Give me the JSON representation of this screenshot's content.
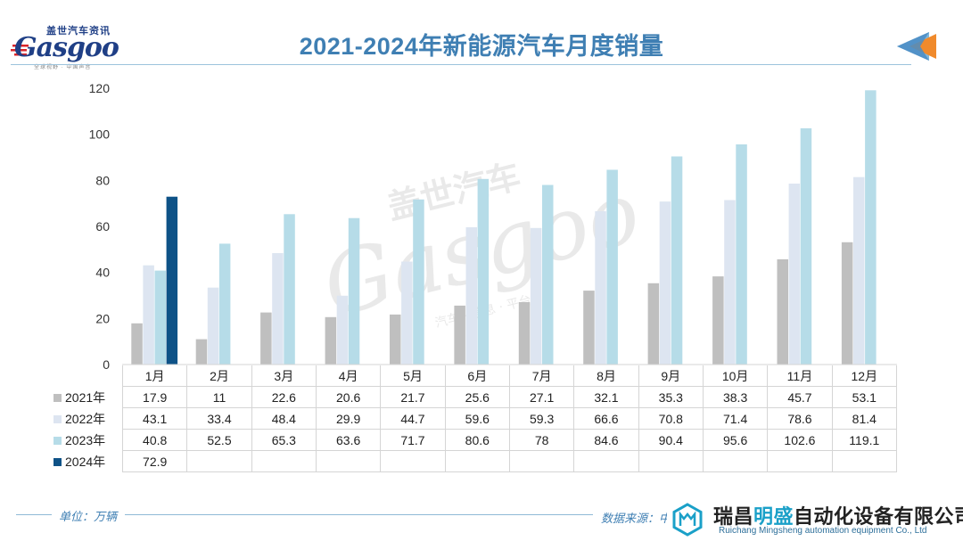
{
  "header": {
    "logo_cn": "盖世汽车资讯",
    "logo_word": "Gasgoo",
    "logo_sub": "全球视野 · 中国声音",
    "title": "2021-2024年新能源汽车月度销量"
  },
  "colors": {
    "2021": "#bfbfbf",
    "2022": "#dde5f1",
    "2023": "#b6dce8",
    "2024": "#0e5287",
    "accent": "#3f7fb3"
  },
  "chart_data": {
    "type": "bar",
    "title": "2021-2024年新能源汽车月度销量",
    "categories": [
      "1月",
      "2月",
      "3月",
      "4月",
      "5月",
      "6月",
      "7月",
      "8月",
      "9月",
      "10月",
      "11月",
      "12月"
    ],
    "series": [
      {
        "name": "2021年",
        "values": [
          17.9,
          11,
          22.6,
          20.6,
          21.7,
          25.6,
          27.1,
          32.1,
          35.3,
          38.3,
          45.7,
          53.1
        ]
      },
      {
        "name": "2022年",
        "values": [
          43.1,
          33.4,
          48.4,
          29.9,
          44.7,
          59.6,
          59.3,
          66.6,
          70.8,
          71.4,
          78.6,
          81.4
        ]
      },
      {
        "name": "2023年",
        "values": [
          40.8,
          52.5,
          65.3,
          63.6,
          71.7,
          80.6,
          78,
          84.6,
          90.4,
          95.6,
          102.6,
          119.1
        ]
      },
      {
        "name": "2024年",
        "values": [
          72.9,
          null,
          null,
          null,
          null,
          null,
          null,
          null,
          null,
          null,
          null,
          null
        ]
      }
    ],
    "ylim": [
      0,
      120
    ],
    "yticks": [
      0,
      20,
      40,
      60,
      80,
      100,
      120
    ],
    "grid": false,
    "legend": "table-left"
  },
  "table": {
    "rows": [
      {
        "label": "2021年",
        "cells": [
          "17.9",
          "11",
          "22.6",
          "20.6",
          "21.7",
          "25.6",
          "27.1",
          "32.1",
          "35.3",
          "38.3",
          "45.7",
          "53.1"
        ]
      },
      {
        "label": "2022年",
        "cells": [
          "43.1",
          "33.4",
          "48.4",
          "29.9",
          "44.7",
          "59.6",
          "59.3",
          "66.6",
          "70.8",
          "71.4",
          "78.6",
          "81.4"
        ]
      },
      {
        "label": "2023年",
        "cells": [
          "40.8",
          "52.5",
          "65.3",
          "63.6",
          "71.7",
          "80.6",
          "78",
          "84.6",
          "90.4",
          "95.6",
          "102.6",
          "119.1"
        ]
      },
      {
        "label": "2024年",
        "cells": [
          "72.9",
          "",
          "",
          "",
          "",
          "",
          "",
          "",
          "",
          "",
          "",
          ""
        ]
      }
    ]
  },
  "footer": {
    "unit": "单位：万辆",
    "source": "数据来源：中",
    "company_pre": "瑞昌",
    "company_hl": "明盛",
    "company_post": "自动化设备有限公司",
    "company_en": "Ruichang Mingsheng automation equipment Co., Ltd"
  },
  "watermark": {
    "line1": "盖世汽车",
    "line2": "Gasgoo",
    "line3": "汽车 · 信息 · 平台"
  }
}
